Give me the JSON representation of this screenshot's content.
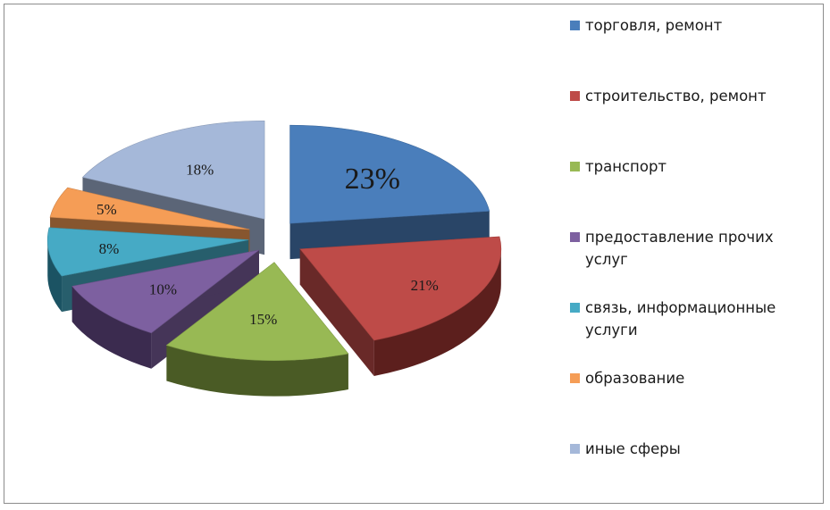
{
  "colors": {
    "border": "#8c8c8c",
    "text": "#1a1a1a"
  },
  "chart_data": {
    "type": "pie",
    "style": "3d-exploded",
    "legend_position": "right",
    "slices": [
      {
        "label": "торговля, ремонт",
        "value": 23,
        "display": "23%",
        "color": "#4a7ebb",
        "side_color": "#233a5a"
      },
      {
        "label": "строительство, ремонт",
        "value": 21,
        "display": "21%",
        "color": "#be4b48",
        "side_color": "#5c1f1d"
      },
      {
        "label": "транспорт",
        "value": 15,
        "display": "15%",
        "color": "#98b954",
        "side_color": "#4a5b25"
      },
      {
        "label": "предоставление прочих услуг",
        "value": 10,
        "display": "10%",
        "color": "#7d60a0",
        "side_color": "#3b2b4f"
      },
      {
        "label": "связь, информационные услуги",
        "value": 8,
        "display": "8%",
        "color": "#46aac5",
        "side_color": "#1b5363"
      },
      {
        "label": "образование",
        "value": 5,
        "display": "5%",
        "color": "#f59d56",
        "side_color": "#7a4517"
      },
      {
        "label": "иные сферы",
        "value": 18,
        "display": "18%",
        "color": "#a5b8d9",
        "side_color": "#424d5f"
      }
    ]
  }
}
